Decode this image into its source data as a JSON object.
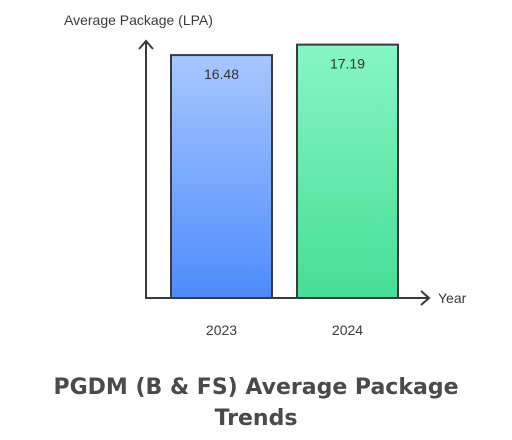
{
  "chart_data": {
    "type": "bar",
    "title": "PGDM (B & FS) Average Package Trends",
    "xlabel": "Year",
    "ylabel": "Average Package (LPA)",
    "categories": [
      "2023",
      "2024"
    ],
    "values": [
      16.48,
      17.19
    ],
    "data_labels": [
      "16.48",
      "17.19"
    ],
    "bar_colors": [
      {
        "top": "#a8c7ff",
        "bottom": "#4d8bfb"
      },
      {
        "top": "#86f6c4",
        "bottom": "#46dd96"
      }
    ],
    "grid": false,
    "legend": "none"
  }
}
